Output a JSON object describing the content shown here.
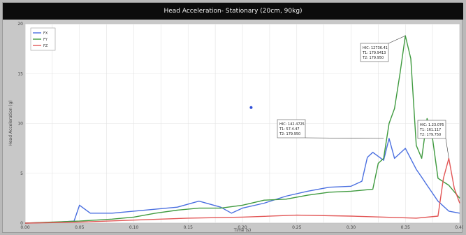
{
  "chart_data": {
    "type": "line",
    "title": "Head Acceleration- Stationary (20cm, 90kg)",
    "xlabel": "Time (s)",
    "ylabel": "Head Acceleration (g)",
    "xlim": [
      0,
      0.4
    ],
    "ylim": [
      0,
      20
    ],
    "grid": true,
    "legend_position": "top-left",
    "y_ticks": [
      0,
      5,
      10,
      15,
      20
    ],
    "x_ticks": [
      0,
      0.025,
      0.05,
      0.075,
      0.1,
      0.125,
      0.15,
      0.175,
      0.2,
      0.225,
      0.25,
      0.275,
      0.3,
      0.325,
      0.35,
      0.375,
      0.4
    ],
    "x_tick_labels": [
      "0.00",
      "",
      "0.05",
      "",
      "0.10",
      "",
      "0.15",
      "",
      "0.20",
      "",
      "0.25",
      "",
      "0.30",
      "",
      "0.35",
      "",
      "0.40"
    ],
    "series": [
      {
        "name": "FX",
        "color": "#4a6fe0",
        "x": [
          0,
          0.03,
          0.045,
          0.05,
          0.06,
          0.08,
          0.1,
          0.12,
          0.14,
          0.16,
          0.18,
          0.19,
          0.2,
          0.22,
          0.24,
          0.26,
          0.28,
          0.3,
          0.31,
          0.315,
          0.32,
          0.33,
          0.335,
          0.34,
          0.35,
          0.36,
          0.365,
          0.37,
          0.38,
          0.39,
          0.4
        ],
        "y": [
          0,
          0.1,
          0.2,
          1.8,
          1.0,
          1.0,
          1.2,
          1.4,
          1.6,
          2.2,
          1.6,
          1.0,
          1.5,
          2.0,
          2.7,
          3.2,
          3.6,
          3.7,
          4.2,
          6.6,
          7.1,
          6.3,
          8.5,
          6.5,
          7.5,
          5.4,
          4.6,
          3.8,
          2.2,
          1.2,
          1.0
        ]
      },
      {
        "name": "FY",
        "color": "#3f9a3f",
        "x": [
          0,
          0.05,
          0.08,
          0.1,
          0.12,
          0.14,
          0.16,
          0.18,
          0.2,
          0.22,
          0.24,
          0.26,
          0.28,
          0.3,
          0.32,
          0.325,
          0.33,
          0.335,
          0.34,
          0.345,
          0.35,
          0.355,
          0.36,
          0.365,
          0.37,
          0.375,
          0.38,
          0.39,
          0.4
        ],
        "y": [
          0,
          0.2,
          0.4,
          0.6,
          1.0,
          1.3,
          1.5,
          1.5,
          1.8,
          2.3,
          2.4,
          2.8,
          3.1,
          3.2,
          3.4,
          6.0,
          6.5,
          10.0,
          11.5,
          15.0,
          18.8,
          16.5,
          7.8,
          6.5,
          10.5,
          8.5,
          4.5,
          3.8,
          2.5
        ]
      },
      {
        "name": "FZ",
        "color": "#e25656",
        "x": [
          0,
          0.05,
          0.1,
          0.15,
          0.2,
          0.25,
          0.3,
          0.33,
          0.36,
          0.38,
          0.385,
          0.39,
          0.395,
          0.4
        ],
        "y": [
          0,
          0.1,
          0.3,
          0.5,
          0.6,
          0.8,
          0.7,
          0.6,
          0.5,
          0.7,
          4.5,
          6.5,
          3.5,
          2.0
        ]
      }
    ],
    "annotations": [
      {
        "lines": [
          "HIC: 12736.41",
          "T1: 179.9413",
          "T2: 179.950"
        ],
        "x": 0.35,
        "y": 18.8
      },
      {
        "lines": [
          "HIC: 142.4725",
          "T1: 57.4.47",
          "T2: 179.950"
        ],
        "x": 0.33,
        "y": 8.5
      },
      {
        "lines": [
          "HIC: 1.23.076",
          "T1: 161.117",
          "T2: 179.750"
        ],
        "x": 0.39,
        "y": 6.5
      }
    ],
    "marker": {
      "x": 0.208,
      "y": 11.6,
      "color": "#2f4fd8"
    }
  }
}
